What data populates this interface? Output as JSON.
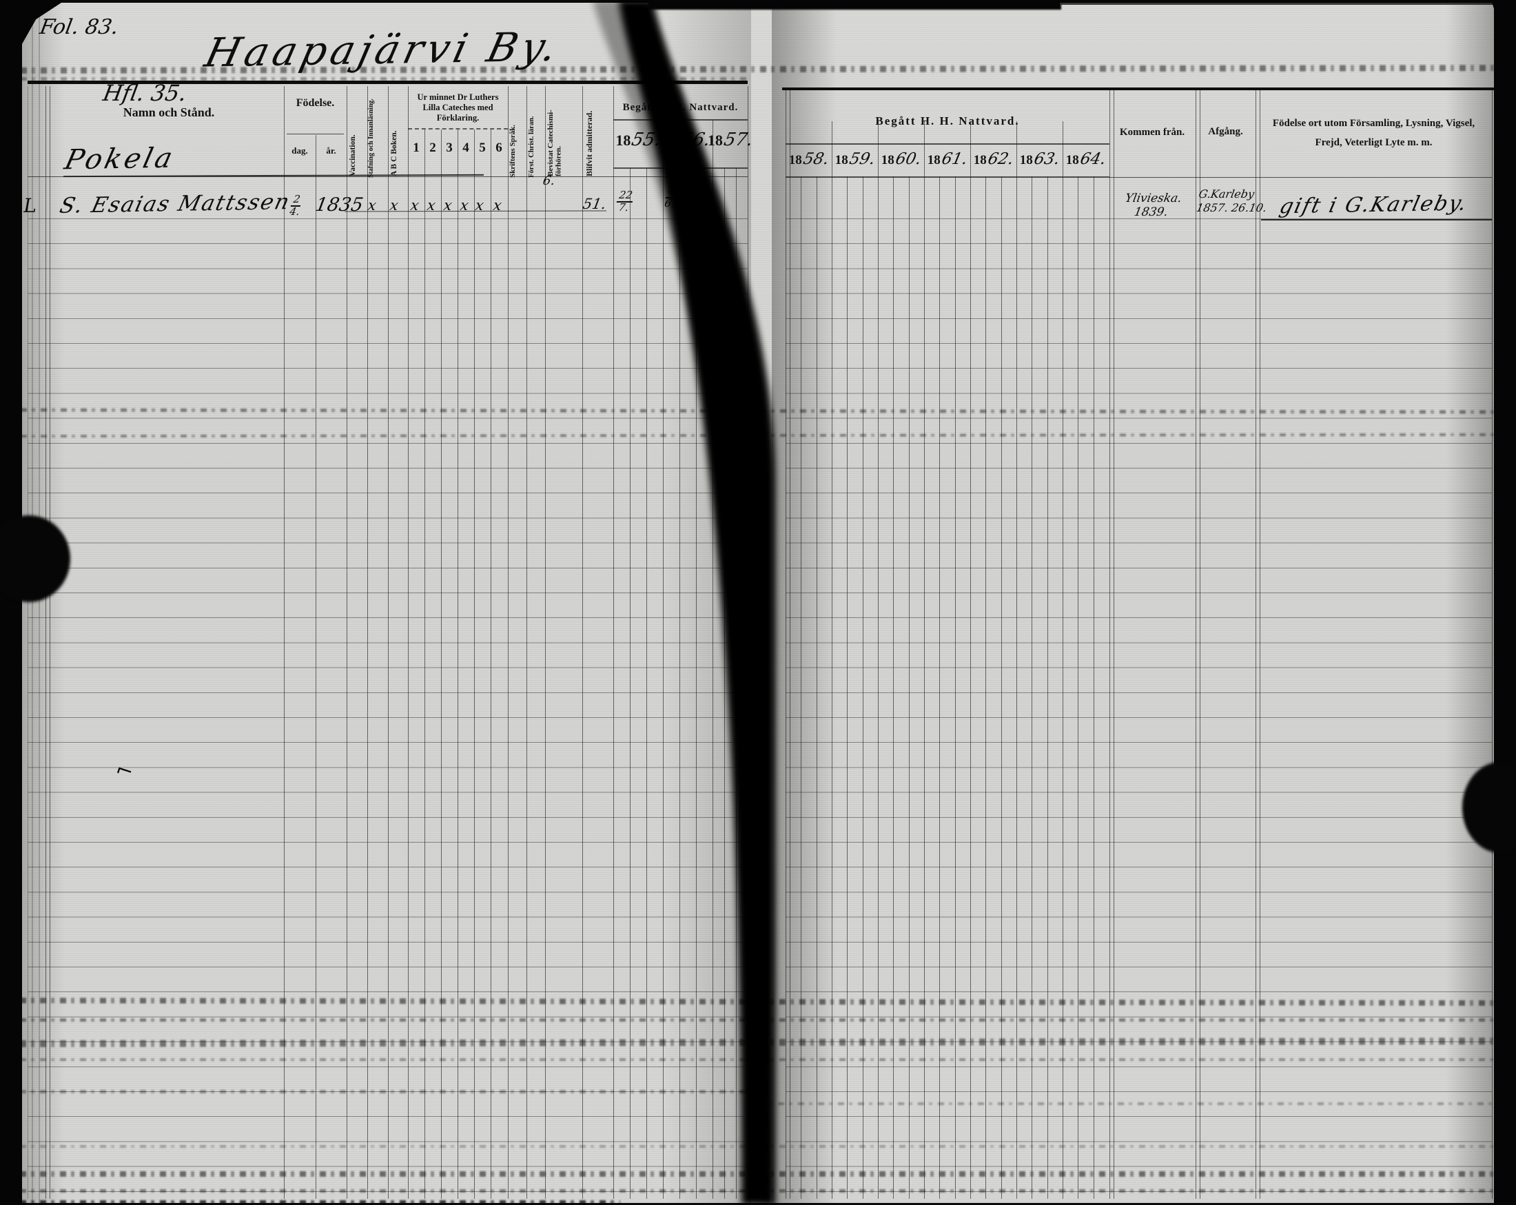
{
  "folio": "Fol. 83.",
  "title": "Haapajärvi By.",
  "left_page": {
    "section_note": "Hfl. 35.",
    "headers": {
      "name": "Namn och Stånd.",
      "birth": "Födelse.",
      "birth_day": "dag.",
      "birth_year": "år.",
      "vaccination": "Vaccination.",
      "spelling_reading": "Stafning och Innanläsning.",
      "abc_book": "A B C Boken.",
      "catechism": "Ur minnet Dr Luthers Lilla Cateches med Förklaring.",
      "catechism_grades": [
        "1",
        "2",
        "3",
        "4",
        "5",
        "6"
      ],
      "scripture_language": "Skriftens Språk.",
      "christian_doctrine": "Först. Christ. läran.",
      "catechism_meeting": "Bevistat Catechismi-förhören.",
      "admitted": "Blifvit admitterad.",
      "communion": "Begått H. H. Nattvard.",
      "communion_years": [
        "1855",
        "1856",
        "1857"
      ]
    },
    "entries": {
      "farm_name": "Pokela",
      "person": {
        "margin_mark": "L",
        "name": "S. Esaias Mattssen",
        "birth_day": "2/4",
        "birth_year": "1835",
        "reading_marks": [
          "x",
          "x",
          "x",
          "x",
          "x",
          "x",
          "x",
          "x"
        ],
        "doctrine_mark": "6.",
        "admitted_year": "51.",
        "communion_1855": "22/7",
        "communion_1856": "4/6"
      }
    }
  },
  "right_page": {
    "headers": {
      "communion": "Begått H. H. Nattvard.",
      "communion_years": [
        "1858",
        "1859",
        "1860",
        "1861",
        "1862",
        "1863",
        "1864"
      ],
      "came_from": "Kommen från.",
      "departure": "Afgång.",
      "notes": "Födelse ort utom Församling, Lysning, Vigsel, Frejd, Veterligt Lyte m. m."
    },
    "entries": {
      "came_from": "Ylivieska.\n1839.",
      "departure": "G.Karleby\n1857. 26.10.",
      "notes": "gift i G.Karleby."
    }
  }
}
